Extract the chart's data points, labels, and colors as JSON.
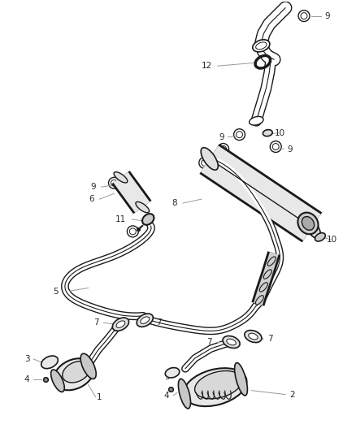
{
  "background_color": "#ffffff",
  "line_color": "#1a1a1a",
  "label_color": "#2a2a2a",
  "callout_line_color": "#999999",
  "fig_width": 4.38,
  "fig_height": 5.33,
  "dpi": 100
}
